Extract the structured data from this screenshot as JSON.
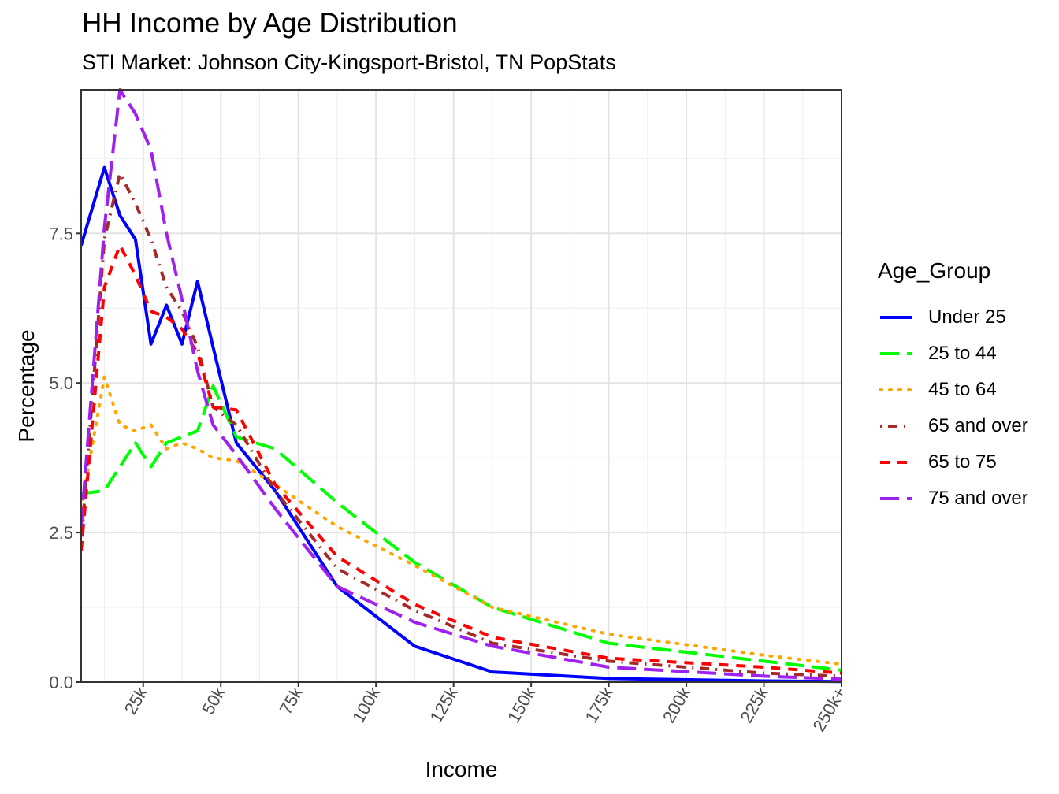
{
  "title": "HH Income by Age Distribution",
  "subtitle": "STI Market: Johnson City-Kingsport-Bristol, TN PopStats",
  "chart_data": {
    "type": "line",
    "title": "HH Income by Age Distribution",
    "subtitle": "STI Market: Johnson City-Kingsport-Bristol, TN PopStats",
    "xlabel": "Income",
    "ylabel": "Percentage",
    "x_ticks": [
      "25k",
      "50k",
      "75k",
      "100k",
      "125k",
      "150k",
      "175k",
      "200k",
      "225k",
      "250k+"
    ],
    "y_ticks": [
      "0.0",
      "2.5",
      "5.0",
      "7.5"
    ],
    "xlim": [
      5,
      250
    ],
    "ylim": [
      0,
      9.9
    ],
    "grid": true,
    "legend_title": "Age_Group",
    "legend_position": "right",
    "x": [
      5,
      12.5,
      17.5,
      22.5,
      27.5,
      32.5,
      37.5,
      42.5,
      47.5,
      55,
      67.5,
      87.5,
      112.5,
      137.5,
      175,
      225,
      250
    ],
    "series": [
      {
        "name": "Under 25",
        "color": "#0000ff",
        "dash": "solid",
        "values": [
          7.3,
          8.6,
          7.8,
          7.4,
          5.65,
          6.3,
          5.65,
          6.7,
          5.6,
          4.0,
          3.2,
          1.6,
          0.6,
          0.17,
          0.06,
          0.02,
          0.01
        ]
      },
      {
        "name": "25 to 44",
        "color": "#00ff00",
        "dash": "longdash",
        "values": [
          3.15,
          3.2,
          3.6,
          4.0,
          3.6,
          4.0,
          4.1,
          4.2,
          4.95,
          4.1,
          3.9,
          3.0,
          2.0,
          1.25,
          0.65,
          0.35,
          0.2
        ]
      },
      {
        "name": "45 to 64",
        "color": "#ffa500",
        "dash": "dotted",
        "values": [
          2.9,
          5.1,
          4.3,
          4.2,
          4.3,
          3.9,
          4.0,
          3.9,
          3.75,
          3.7,
          3.3,
          2.6,
          1.95,
          1.25,
          0.8,
          0.45,
          0.3
        ]
      },
      {
        "name": "65 and over",
        "color": "#a52a2a",
        "dash": "dotdash",
        "values": [
          2.3,
          7.4,
          8.5,
          8.0,
          7.4,
          6.6,
          6.2,
          5.6,
          4.6,
          4.3,
          3.2,
          1.9,
          1.2,
          0.65,
          0.35,
          0.15,
          0.1
        ]
      },
      {
        "name": "65 to 75",
        "color": "#ff0000",
        "dash": "dashed",
        "values": [
          2.2,
          6.6,
          7.3,
          6.8,
          6.2,
          6.1,
          5.9,
          5.5,
          4.6,
          4.55,
          3.3,
          2.1,
          1.3,
          0.75,
          0.4,
          0.25,
          0.15
        ]
      },
      {
        "name": "75 and over",
        "color": "#a020f0",
        "dash": "longdash",
        "values": [
          2.6,
          7.6,
          9.9,
          9.5,
          8.9,
          7.5,
          6.4,
          5.2,
          4.3,
          3.8,
          2.9,
          1.6,
          1.0,
          0.6,
          0.25,
          0.1,
          0.05
        ]
      }
    ]
  }
}
